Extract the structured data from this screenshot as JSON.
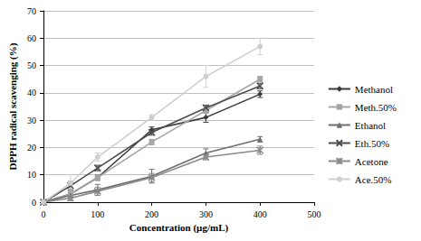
{
  "chart_data": {
    "type": "line",
    "x_label": "Concentration (µg/mL)",
    "y_label": "DPPH radical scavenging (%)",
    "x": [
      0,
      50,
      100,
      200,
      300,
      400
    ],
    "xlim": [
      0,
      500
    ],
    "xticks": [
      0,
      100,
      200,
      300,
      400,
      500
    ],
    "ylim": [
      0,
      70
    ],
    "yticks": [
      0,
      10,
      20,
      30,
      40,
      50,
      60,
      70
    ],
    "grid": true,
    "legend": "right",
    "series": [
      {
        "name": "Methanol",
        "color": "#3a3a3a",
        "marker": "diamond",
        "values": [
          0,
          3,
          9,
          26.5,
          31,
          39.5
        ],
        "errors": [
          0,
          1,
          1,
          1,
          1.8,
          1.2
        ]
      },
      {
        "name": "Meth.50%",
        "color": "#a6a6a6",
        "marker": "square",
        "values": [
          0,
          3,
          9,
          22,
          33.5,
          45
        ],
        "errors": [
          0,
          1,
          1,
          1,
          1,
          1
        ]
      },
      {
        "name": "Ethanol",
        "color": "#6e6e6e",
        "marker": "triangle",
        "values": [
          0,
          2.5,
          4.5,
          9.5,
          18,
          23
        ],
        "errors": [
          0,
          1,
          2,
          2.5,
          1.5,
          1
        ]
      },
      {
        "name": "Eth.50%",
        "color": "#4d4d4d",
        "marker": "cross",
        "values": [
          0,
          6,
          12.5,
          25.5,
          34.5,
          42.5
        ],
        "errors": [
          0,
          1.5,
          1,
          1,
          1,
          1
        ]
      },
      {
        "name": "Acetone",
        "color": "#8a8a8a",
        "marker": "star",
        "values": [
          0,
          1.5,
          4,
          9,
          16.5,
          19
        ],
        "errors": [
          0,
          1,
          1.5,
          1.5,
          1,
          1.5
        ]
      },
      {
        "name": "Ace.50%",
        "color": "#cfcfcf",
        "marker": "circle",
        "values": [
          0,
          7,
          16.5,
          31,
          46,
          57
        ],
        "errors": [
          0,
          3,
          1.5,
          1,
          4,
          3
        ]
      }
    ]
  }
}
